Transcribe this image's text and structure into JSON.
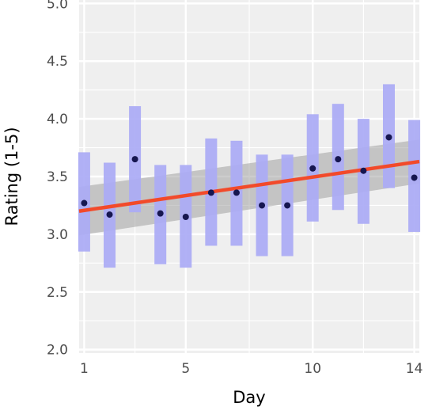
{
  "chart_data": {
    "type": "scatter",
    "title": "",
    "xlabel": "Day",
    "ylabel": "Rating (1-5)",
    "xlim": [
      0.8,
      14.2
    ],
    "ylim": [
      1.97,
      5.03
    ],
    "x_ticks": [
      1,
      5,
      10,
      14
    ],
    "x_tick_labels": [
      "1",
      "5",
      "10",
      "14"
    ],
    "y_ticks": [
      2.0,
      2.5,
      3.0,
      3.5,
      4.0,
      4.5,
      5.0
    ],
    "y_tick_labels": [
      "2.0",
      "2.5",
      "3.0",
      "3.5",
      "4.0",
      "4.5",
      "5.0"
    ],
    "grid": true,
    "series": [
      {
        "type": "errorbar",
        "color": "#aaaaf5",
        "points": [
          {
            "x": 1,
            "mean": 3.27,
            "lower": 2.85,
            "upper": 3.71
          },
          {
            "x": 2,
            "mean": 3.17,
            "lower": 2.71,
            "upper": 3.62
          },
          {
            "x": 3,
            "mean": 3.65,
            "lower": 3.19,
            "upper": 4.11
          },
          {
            "x": 4,
            "mean": 3.18,
            "lower": 2.74,
            "upper": 3.6
          },
          {
            "x": 5,
            "mean": 3.15,
            "lower": 2.71,
            "upper": 3.6
          },
          {
            "x": 6,
            "mean": 3.36,
            "lower": 2.9,
            "upper": 3.83
          },
          {
            "x": 7,
            "mean": 3.36,
            "lower": 2.9,
            "upper": 3.81
          },
          {
            "x": 8,
            "mean": 3.25,
            "lower": 2.81,
            "upper": 3.69
          },
          {
            "x": 9,
            "mean": 3.25,
            "lower": 2.81,
            "upper": 3.69
          },
          {
            "x": 10,
            "mean": 3.57,
            "lower": 3.11,
            "upper": 4.04
          },
          {
            "x": 11,
            "mean": 3.65,
            "lower": 3.21,
            "upper": 4.13
          },
          {
            "x": 12,
            "mean": 3.55,
            "lower": 3.09,
            "upper": 4.0
          },
          {
            "x": 13,
            "mean": 3.84,
            "lower": 3.4,
            "upper": 4.3
          },
          {
            "x": 14,
            "mean": 3.49,
            "lower": 3.02,
            "upper": 3.99
          }
        ]
      },
      {
        "type": "trend",
        "color": "#f24a2a",
        "band_color": "#999999",
        "x": [
          0.8,
          14.2
        ],
        "y": [
          3.2,
          3.63
        ],
        "band_lower": [
          2.99,
          3.44
        ],
        "band_upper": [
          3.41,
          3.82
        ]
      }
    ],
    "colors": {
      "panel": "#efefef",
      "grid": "#ffffff",
      "point": "#161650"
    }
  }
}
